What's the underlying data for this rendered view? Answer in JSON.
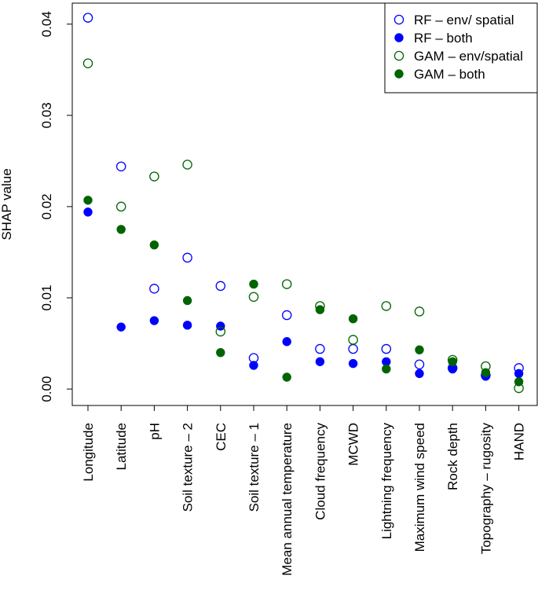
{
  "chart_data": {
    "type": "scatter",
    "xlabel": "",
    "ylabel": "SHAP value",
    "ylim": [
      -0.0018,
      0.0423
    ],
    "y_ticks": [
      {
        "value": 0.0,
        "label": "0.00"
      },
      {
        "value": 0.01,
        "label": "0.01"
      },
      {
        "value": 0.02,
        "label": "0.02"
      },
      {
        "value": 0.03,
        "label": "0.03"
      },
      {
        "value": 0.04,
        "label": "0.04"
      }
    ],
    "categories": [
      "Longitude",
      "Latitude",
      "pH",
      "Soil texture – 2",
      "CEC",
      "Soil texture – 1",
      "Mean annual temperature",
      "Cloud frequency",
      "MCWD",
      "Lightning frequency",
      "Maximum wind speed",
      "Rock depth",
      "Topography – rugosity",
      "HAND"
    ],
    "series": [
      {
        "name": "RF – env/ spatial",
        "color": "#0000ff",
        "filled": false,
        "values": [
          0.0407,
          0.0244,
          0.011,
          0.0144,
          0.0113,
          0.0034,
          0.0081,
          0.0044,
          0.0044,
          0.0044,
          0.0027,
          0.0023,
          0.0015,
          0.0023
        ]
      },
      {
        "name": "RF – both",
        "color": "#0000ff",
        "filled": true,
        "values": [
          0.0194,
          0.0068,
          0.0075,
          0.007,
          0.0069,
          0.0026,
          0.0052,
          0.003,
          0.0028,
          0.003,
          0.0017,
          0.0022,
          0.0014,
          0.0017
        ]
      },
      {
        "name": "GAM – env/spatial",
        "color": "#006400",
        "filled": false,
        "values": [
          0.0357,
          0.02,
          0.0233,
          0.0246,
          0.0063,
          0.0101,
          0.0115,
          0.0091,
          0.0054,
          0.0091,
          0.0085,
          0.0032,
          0.0025,
          0.0001
        ]
      },
      {
        "name": "GAM – both",
        "color": "#006400",
        "filled": true,
        "values": [
          0.0207,
          0.0175,
          0.0158,
          0.0097,
          0.004,
          0.0115,
          0.0013,
          0.0087,
          0.0077,
          0.0022,
          0.0043,
          0.003,
          0.0018,
          0.0008
        ]
      }
    ],
    "legend": "top-right"
  }
}
